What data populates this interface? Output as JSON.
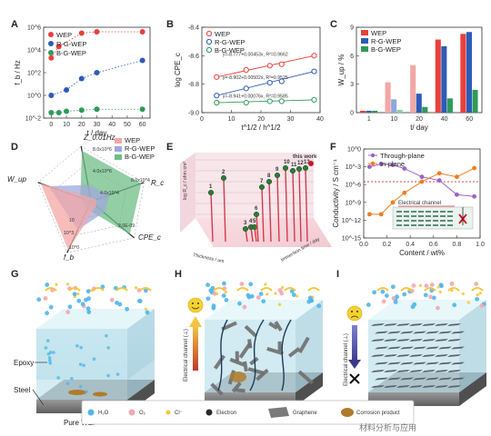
{
  "colors": {
    "wep": "#e8403a",
    "rgwep": "#2d5bb8",
    "bgwep": "#2e9a58",
    "wep_light": "#f3a7a4",
    "rgwep_light": "#8fa7de",
    "bgwep_light": "#8fcf9f"
  },
  "panels": {
    "a": "A",
    "b": "B",
    "c": "C",
    "d": "D",
    "e": "E",
    "f": "F",
    "g": "G",
    "h": "H",
    "i": "I"
  },
  "legend": {
    "wep": "WEP",
    "rgwep": "R-G-WEP",
    "bgwep": "B-G-WEP"
  },
  "chart_data": [
    {
      "id": "A",
      "type": "scatter",
      "xlabel": "t / day",
      "ylabel": "f_b / Hz",
      "yscale": "log",
      "xlim": [
        -5,
        65
      ],
      "ylim": [
        0.01,
        1000000
      ],
      "xticks": [
        "0",
        "10",
        "20",
        "30",
        "40",
        "50",
        "60"
      ],
      "yticks": [
        "10^-2",
        "10^0",
        "10^2",
        "10^4",
        "10^6"
      ],
      "series": [
        {
          "name": "WEP",
          "x": [
            0,
            5,
            20,
            30,
            60
          ],
          "y": [
            2000,
            20000,
            300000,
            400000,
            400000
          ]
        },
        {
          "name": "R-G-WEP",
          "x": [
            0,
            10,
            20,
            30,
            60
          ],
          "y": [
            1,
            3,
            30,
            100,
            1200
          ]
        },
        {
          "name": "B-G-WEP",
          "x": [
            0,
            5,
            10,
            20,
            30,
            60
          ],
          "y": [
            0.03,
            0.03,
            0.04,
            0.05,
            0.06,
            0.06
          ]
        }
      ]
    },
    {
      "id": "B",
      "type": "scatter",
      "xlabel": "t^1/2 / h^1/2",
      "ylabel": "log CPE_c",
      "xlim": [
        0,
        40
      ],
      "ylim": [
        -9.0,
        -8.4
      ],
      "xticks": [
        "0",
        "10",
        "20",
        "30",
        "40"
      ],
      "yticks": [
        "-8.4",
        "-8.6",
        "-8.8",
        "-9.0"
      ],
      "series": [
        {
          "name": "WEP",
          "x": [
            5,
            15,
            23,
            27,
            38
          ],
          "y": [
            -8.75,
            -8.7,
            -8.67,
            -8.66,
            -8.6
          ],
          "fit": "y=-8.777+0.00453x, R²=0.9662"
        },
        {
          "name": "R-G-WEP",
          "x": [
            5,
            15,
            23,
            27,
            38
          ],
          "y": [
            -8.88,
            -8.83,
            -8.79,
            -8.78,
            -8.71
          ],
          "fit": "y=-8.902+0.00502x, R²=0.9525"
        },
        {
          "name": "B-G-WEP",
          "x": [
            5,
            15,
            23,
            27,
            38
          ],
          "y": [
            -8.93,
            -8.93,
            -8.92,
            -8.92,
            -8.91
          ],
          "fit": "y=-8.941+0.00076x, R²=0.9585"
        }
      ]
    },
    {
      "id": "C",
      "type": "bar",
      "xlabel": "t/ day",
      "ylabel": "W_up / %",
      "categories": [
        "1",
        "10",
        "20",
        "40",
        "60"
      ],
      "ylim": [
        0,
        9
      ],
      "yticks": [
        "0",
        "3",
        "6",
        "9"
      ],
      "series": [
        {
          "name": "WEP",
          "values": [
            0.2,
            3.2,
            5.0,
            7.7,
            8.3
          ]
        },
        {
          "name": "R-G-WEP",
          "values": [
            0.2,
            1.4,
            2.0,
            7.0,
            8.5
          ]
        },
        {
          "name": "B-G-WEP",
          "values": [
            0.2,
            0.3,
            0.6,
            1.5,
            2.4
          ]
        }
      ]
    },
    {
      "id": "D",
      "type": "radar",
      "axes": [
        "Z_0.01Hz",
        "R_c",
        "CPE_c",
        "f_b",
        "W_up"
      ],
      "tick_labels": [
        "8.0x10^6",
        "4.0x10^6",
        "4.0x10^4",
        "8.0x10^4",
        "2.0E-09",
        "10^3",
        "10^0",
        "10"
      ],
      "series": [
        {
          "name": "WEP",
          "values": [
            0.08,
            0.1,
            0.12,
            0.95,
            0.95
          ]
        },
        {
          "name": "R-G-WEP",
          "values": [
            0.3,
            0.35,
            0.3,
            0.55,
            0.8
          ]
        },
        {
          "name": "B-G-WEP",
          "values": [
            0.92,
            0.95,
            0.9,
            0.15,
            0.2
          ]
        }
      ]
    },
    {
      "id": "E",
      "type": "bar3d",
      "ylabel": "log R_c / ohm cm²",
      "xlabel": "Thickness / um",
      "zlabel": "Immersion time / day",
      "highlight": "this work",
      "labels": [
        "1",
        "2",
        "3",
        "4",
        "5",
        "6",
        "7",
        "8",
        "9",
        "10",
        "11",
        "12",
        "13"
      ]
    },
    {
      "id": "F",
      "type": "line",
      "xlabel": "Content / wt%",
      "ylabel": "Conductivity / S cm⁻¹",
      "xlim": [
        0,
        1
      ],
      "ylim": [
        1e-15,
        1
      ],
      "xticks": [
        "0.0",
        "0.2",
        "0.4",
        "0.6",
        "0.8",
        "1.0"
      ],
      "yticks": [
        "10^-15",
        "10^-12",
        "10^-9",
        "10^-6",
        "10^-3",
        "10^0"
      ],
      "series": [
        {
          "name": "Through-plane",
          "x": [
            0.05,
            0.15,
            0.25,
            0.35,
            0.5,
            0.65,
            0.8,
            0.95
          ],
          "y": [
            0.001,
            0.003,
            0.002,
            0.0005,
            2e-05,
            5e-06,
            2e-08,
            1e-08
          ]
        },
        {
          "name": "In-plane",
          "x": [
            0.05,
            0.15,
            0.25,
            0.35,
            0.5,
            0.65,
            0.8,
            0.95
          ],
          "y": [
            1e-11,
            1e-11,
            1e-09,
            4e-08,
            3e-06,
            8e-05,
            2e-05,
            0.0006
          ]
        }
      ],
      "inset": "Electrical channel"
    }
  ],
  "schematics": {
    "g_caption": "Pure WEP",
    "g_epoxy": "Epoxy",
    "g_steel": "Steel",
    "h_axis": "Electrical channel (⊥)",
    "i_axis": "Electrical channel (⊥)"
  },
  "bottom_legend": {
    "h2o": "H₂O",
    "o2": "O₂",
    "cl": "Cl⁻",
    "electron": "Electron",
    "graphene": "Graphene",
    "corrosion": "Corrosion product"
  },
  "watermark": "材料分析与应用"
}
